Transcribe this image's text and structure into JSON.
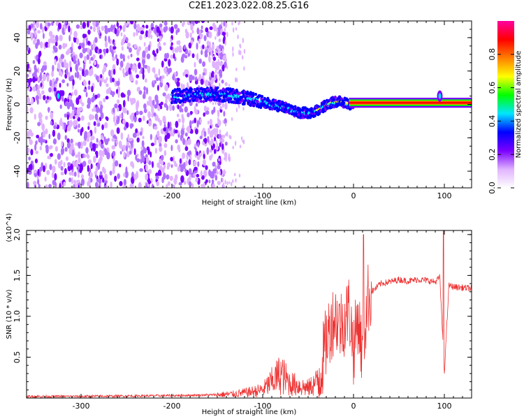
{
  "title": "C2E1.2023.022.08.25.G16",
  "chart_data": [
    {
      "type": "heatmap",
      "xlabel": "Height of straight line (km)",
      "ylabel": "Frequency (Hz)",
      "xlim": [
        -360,
        130
      ],
      "ylim": [
        -50,
        50
      ],
      "xticks": [
        -300,
        -200,
        -100,
        0,
        100
      ],
      "yticks": [
        -40,
        -20,
        0,
        20,
        40
      ],
      "colorbar": {
        "label": "Normalized spectral amplitude",
        "range": [
          0,
          1
        ],
        "ticks": [
          "0.0",
          "0.2",
          "0.4",
          "0.6",
          "0.8"
        ],
        "colors": [
          "#ffffff",
          "#e0b3ff",
          "#7a00ff",
          "#0000ff",
          "#00e5ff",
          "#00ff00",
          "#ffff00",
          "#ff7f00",
          "#ff0000",
          "#ff00a0"
        ]
      },
      "signal_track": {
        "x": [
          -200,
          -150,
          -130,
          -110,
          -90,
          -75,
          -60,
          -45,
          -35,
          -25,
          -15,
          -5,
          0,
          130
        ],
        "y": [
          5,
          6,
          5,
          3,
          0,
          -2,
          -5,
          -5,
          -2,
          1,
          2,
          0,
          1,
          1
        ]
      },
      "noise_region_x": [
        -360,
        -160
      ],
      "spike_x": [
        -325,
        95
      ]
    },
    {
      "type": "line",
      "xlabel": "Height of straight line (km)",
      "ylabel": "SNR (10 * v/v)",
      "y_multiplier": "(x10^4)",
      "xlim": [
        -360,
        130
      ],
      "ylim": [
        0,
        2.05
      ],
      "xticks": [
        -300,
        -200,
        -100,
        0,
        100
      ],
      "yticks": [
        "0.5",
        "1.0",
        "1.5",
        "2.0"
      ],
      "series": [
        {
          "color": "#ee3333",
          "x": [
            -360,
            -300,
            -200,
            -150,
            -130,
            -110,
            -100,
            -90,
            -80,
            -70,
            -60,
            -50,
            -40,
            -35,
            -30,
            -25,
            -20,
            -15,
            -10,
            -5,
            0,
            5,
            10,
            15,
            20,
            30,
            40,
            50,
            60,
            70,
            80,
            90,
            95,
            100,
            105,
            110,
            120,
            130
          ],
          "y": [
            0.02,
            0.02,
            0.03,
            0.04,
            0.05,
            0.08,
            0.1,
            0.2,
            0.3,
            0.18,
            0.15,
            0.12,
            0.2,
            0.4,
            0.7,
            0.9,
            1.0,
            0.9,
            0.95,
            1.1,
            0.6,
            1.0,
            0.5,
            1.2,
            1.3,
            1.4,
            1.42,
            1.45,
            1.43,
            1.45,
            1.44,
            1.42,
            1.48,
            0.3,
            1.38,
            1.36,
            1.35,
            1.34
          ]
        }
      ],
      "peaks": [
        {
          "x": 11,
          "y": 2.0
        },
        {
          "x": 99,
          "y": 2.05
        }
      ]
    }
  ]
}
